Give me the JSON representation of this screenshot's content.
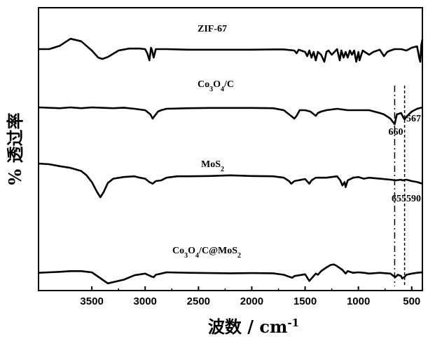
{
  "chart_data": {
    "type": "line",
    "xlabel_main": "波数 / cm",
    "xlabel_sup": "-1",
    "ylabel": "% 透过率",
    "xlim": [
      4000,
      400
    ],
    "x_reversed": true,
    "y_ticks_shown": false,
    "xticks": [
      3500,
      3000,
      2500,
      2000,
      1500,
      1000,
      500
    ],
    "xtick_labels": [
      "3500",
      "3000",
      "2500",
      "2000",
      "1500",
      "1000",
      "500"
    ],
    "grid": false,
    "line_color": "#000000",
    "series": [
      {
        "name": "ZIF-67",
        "label_parts": [
          {
            "t": "ZIF-67",
            "sub": false
          }
        ],
        "offset": 0,
        "points": [
          [
            4000,
            0.5
          ],
          [
            3900,
            0.5
          ],
          [
            3800,
            0.38
          ],
          [
            3700,
            0.13
          ],
          [
            3600,
            0.22
          ],
          [
            3500,
            0.55
          ],
          [
            3440,
            0.8
          ],
          [
            3400,
            0.85
          ],
          [
            3350,
            0.78
          ],
          [
            3250,
            0.55
          ],
          [
            3150,
            0.48
          ],
          [
            3050,
            0.48
          ],
          [
            3000,
            0.5
          ],
          [
            2980,
            0.65
          ],
          [
            2960,
            0.9
          ],
          [
            2945,
            0.45
          ],
          [
            2935,
            0.55
          ],
          [
            2920,
            0.8
          ],
          [
            2900,
            0.5
          ],
          [
            2800,
            0.5
          ],
          [
            2600,
            0.52
          ],
          [
            2400,
            0.52
          ],
          [
            2200,
            0.52
          ],
          [
            2000,
            0.52
          ],
          [
            1800,
            0.51
          ],
          [
            1700,
            0.51
          ],
          [
            1600,
            0.55
          ],
          [
            1580,
            0.65
          ],
          [
            1560,
            0.52
          ],
          [
            1500,
            0.6
          ],
          [
            1480,
            0.75
          ],
          [
            1460,
            0.55
          ],
          [
            1440,
            0.8
          ],
          [
            1420,
            0.6
          ],
          [
            1400,
            0.9
          ],
          [
            1380,
            0.6
          ],
          [
            1350,
            0.7
          ],
          [
            1320,
            0.95
          ],
          [
            1300,
            0.6
          ],
          [
            1280,
            0.55
          ],
          [
            1250,
            0.7
          ],
          [
            1200,
            0.5
          ],
          [
            1175,
            0.9
          ],
          [
            1160,
            0.55
          ],
          [
            1140,
            0.8
          ],
          [
            1120,
            0.6
          ],
          [
            1100,
            0.8
          ],
          [
            1080,
            0.55
          ],
          [
            1060,
            0.7
          ],
          [
            1040,
            0.55
          ],
          [
            1020,
            0.95
          ],
          [
            1000,
            0.6
          ],
          [
            990,
            0.9
          ],
          [
            960,
            0.55
          ],
          [
            900,
            0.7
          ],
          [
            860,
            0.6
          ],
          [
            800,
            0.52
          ],
          [
            760,
            0.75
          ],
          [
            730,
            0.6
          ],
          [
            700,
            0.55
          ],
          [
            660,
            0.5
          ],
          [
            600,
            0.5
          ],
          [
            550,
            0.55
          ],
          [
            500,
            0.45
          ],
          [
            450,
            0.4
          ],
          [
            430,
            0.8
          ],
          [
            420,
            0.95
          ],
          [
            410,
            0.35
          ],
          [
            400,
            0.15
          ]
        ]
      },
      {
        "name": "Co3O4/C",
        "label_parts": [
          {
            "t": "Co",
            "sub": false
          },
          {
            "t": "3",
            "sub": true
          },
          {
            "t": "O",
            "sub": false
          },
          {
            "t": "4",
            "sub": true
          },
          {
            "t": "/C",
            "sub": false
          }
        ],
        "offset": 1,
        "points": [
          [
            4000,
            0.45
          ],
          [
            3800,
            0.48
          ],
          [
            3700,
            0.45
          ],
          [
            3600,
            0.48
          ],
          [
            3500,
            0.45
          ],
          [
            3300,
            0.48
          ],
          [
            3200,
            0.46
          ],
          [
            3100,
            0.5
          ],
          [
            3000,
            0.55
          ],
          [
            2950,
            0.7
          ],
          [
            2930,
            0.85
          ],
          [
            2910,
            0.75
          ],
          [
            2880,
            0.6
          ],
          [
            2850,
            0.55
          ],
          [
            2800,
            0.5
          ],
          [
            2600,
            0.48
          ],
          [
            2400,
            0.47
          ],
          [
            2200,
            0.47
          ],
          [
            2000,
            0.47
          ],
          [
            1800,
            0.48
          ],
          [
            1700,
            0.55
          ],
          [
            1650,
            0.7
          ],
          [
            1600,
            0.85
          ],
          [
            1580,
            0.75
          ],
          [
            1550,
            0.55
          ],
          [
            1500,
            0.55
          ],
          [
            1450,
            0.6
          ],
          [
            1400,
            0.75
          ],
          [
            1380,
            0.65
          ],
          [
            1350,
            0.6
          ],
          [
            1300,
            0.55
          ],
          [
            1200,
            0.5
          ],
          [
            1100,
            0.55
          ],
          [
            1000,
            0.55
          ],
          [
            900,
            0.55
          ],
          [
            850,
            0.6
          ],
          [
            800,
            0.65
          ],
          [
            760,
            0.7
          ],
          [
            700,
            0.85
          ],
          [
            670,
            1.0
          ],
          [
            660,
            1.05
          ],
          [
            640,
            0.7
          ],
          [
            600,
            0.65
          ],
          [
            580,
            0.8
          ],
          [
            567,
            0.88
          ],
          [
            550,
            0.78
          ],
          [
            500,
            0.6
          ],
          [
            450,
            0.5
          ],
          [
            400,
            0.45
          ]
        ]
      },
      {
        "name": "MoS2",
        "label_parts": [
          {
            "t": "MoS",
            "sub": false
          },
          {
            "t": "2",
            "sub": true
          }
        ],
        "offset": 2,
        "points": [
          [
            4000,
            0.2
          ],
          [
            3900,
            0.22
          ],
          [
            3800,
            0.28
          ],
          [
            3700,
            0.33
          ],
          [
            3600,
            0.42
          ],
          [
            3550,
            0.55
          ],
          [
            3500,
            0.75
          ],
          [
            3450,
            1.05
          ],
          [
            3420,
            1.2
          ],
          [
            3390,
            1.05
          ],
          [
            3350,
            0.78
          ],
          [
            3300,
            0.65
          ],
          [
            3200,
            0.6
          ],
          [
            3100,
            0.58
          ],
          [
            3050,
            0.62
          ],
          [
            3000,
            0.65
          ],
          [
            2960,
            0.75
          ],
          [
            2930,
            0.8
          ],
          [
            2900,
            0.72
          ],
          [
            2850,
            0.7
          ],
          [
            2800,
            0.62
          ],
          [
            2700,
            0.58
          ],
          [
            2600,
            0.58
          ],
          [
            2400,
            0.57
          ],
          [
            2200,
            0.55
          ],
          [
            2000,
            0.57
          ],
          [
            1800,
            0.58
          ],
          [
            1700,
            0.62
          ],
          [
            1650,
            0.72
          ],
          [
            1630,
            0.8
          ],
          [
            1600,
            0.72
          ],
          [
            1500,
            0.66
          ],
          [
            1460,
            0.8
          ],
          [
            1440,
            0.7
          ],
          [
            1400,
            0.62
          ],
          [
            1300,
            0.62
          ],
          [
            1250,
            0.6
          ],
          [
            1200,
            0.58
          ],
          [
            1170,
            0.7
          ],
          [
            1150,
            0.85
          ],
          [
            1130,
            0.75
          ],
          [
            1120,
            0.9
          ],
          [
            1100,
            0.7
          ],
          [
            1050,
            0.62
          ],
          [
            1000,
            0.6
          ],
          [
            950,
            0.65
          ],
          [
            900,
            0.62
          ],
          [
            800,
            0.65
          ],
          [
            700,
            0.68
          ],
          [
            650,
            0.7
          ],
          [
            600,
            0.68
          ],
          [
            590,
            0.7
          ],
          [
            550,
            0.68
          ],
          [
            500,
            0.72
          ],
          [
            450,
            0.75
          ],
          [
            400,
            0.8
          ]
        ]
      },
      {
        "name": "Co3O4/C@MoS2",
        "label_parts": [
          {
            "t": "Co",
            "sub": false
          },
          {
            "t": "3",
            "sub": true
          },
          {
            "t": "O",
            "sub": false
          },
          {
            "t": "4",
            "sub": true
          },
          {
            "t": "/C@MoS",
            "sub": false
          },
          {
            "t": "2",
            "sub": true
          }
        ],
        "offset": 3,
        "points": [
          [
            4000,
            0.62
          ],
          [
            3900,
            0.6
          ],
          [
            3800,
            0.58
          ],
          [
            3700,
            0.55
          ],
          [
            3600,
            0.55
          ],
          [
            3500,
            0.6
          ],
          [
            3400,
            0.9
          ],
          [
            3350,
            1.05
          ],
          [
            3300,
            1.0
          ],
          [
            3200,
            0.9
          ],
          [
            3100,
            0.72
          ],
          [
            3000,
            0.65
          ],
          [
            2950,
            0.75
          ],
          [
            2920,
            0.8
          ],
          [
            2900,
            0.7
          ],
          [
            2850,
            0.65
          ],
          [
            2800,
            0.6
          ],
          [
            2600,
            0.62
          ],
          [
            2400,
            0.63
          ],
          [
            2200,
            0.64
          ],
          [
            2000,
            0.63
          ],
          [
            1800,
            0.64
          ],
          [
            1700,
            0.7
          ],
          [
            1650,
            0.78
          ],
          [
            1620,
            0.82
          ],
          [
            1600,
            0.75
          ],
          [
            1500,
            0.68
          ],
          [
            1460,
            0.95
          ],
          [
            1430,
            0.8
          ],
          [
            1400,
            0.65
          ],
          [
            1380,
            0.7
          ],
          [
            1350,
            0.55
          ],
          [
            1300,
            0.4
          ],
          [
            1260,
            0.3
          ],
          [
            1230,
            0.28
          ],
          [
            1200,
            0.35
          ],
          [
            1150,
            0.5
          ],
          [
            1120,
            0.65
          ],
          [
            1100,
            0.55
          ],
          [
            1050,
            0.62
          ],
          [
            1000,
            0.6
          ],
          [
            950,
            0.62
          ],
          [
            900,
            0.65
          ],
          [
            800,
            0.62
          ],
          [
            700,
            0.65
          ],
          [
            655,
            0.8
          ],
          [
            630,
            0.7
          ],
          [
            600,
            0.75
          ],
          [
            590,
            0.85
          ],
          [
            570,
            0.8
          ],
          [
            550,
            0.7
          ],
          [
            500,
            0.65
          ],
          [
            450,
            0.62
          ],
          [
            400,
            0.6
          ]
        ]
      }
    ],
    "annotations": [
      "660",
      "567",
      "655",
      "590"
    ],
    "reference_lines": [
      {
        "x": 660,
        "style": "dashdot"
      },
      {
        "x": 567,
        "style": "dashed"
      }
    ]
  }
}
